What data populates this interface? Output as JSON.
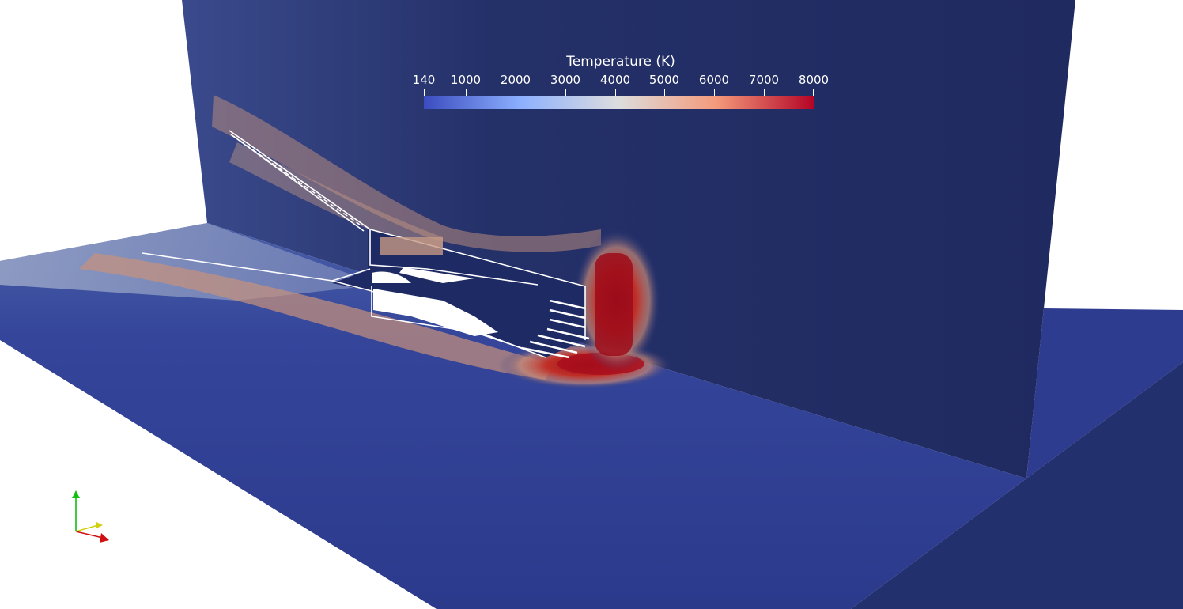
{
  "legend": {
    "title": "Temperature (K)",
    "ticks": [
      "140",
      "1000",
      "2000",
      "3000",
      "4000",
      "5000",
      "6000",
      "7000",
      "8000"
    ],
    "colors": {
      "low": "#3b4cc0",
      "mid": "#dddddd",
      "high": "#b40426"
    }
  },
  "scene": {
    "background": "#ffffff",
    "colors": {
      "cold": "#1e2a63",
      "floor": "#2c3a8c",
      "warm": "#c9a28a",
      "hot": "#b01020",
      "outline": "#ffffff"
    }
  },
  "axes_widget": {
    "icon": "orientation-axes-icon",
    "colors": {
      "x": "#d01010",
      "y": "#10c010",
      "z": "#d0d010"
    }
  }
}
